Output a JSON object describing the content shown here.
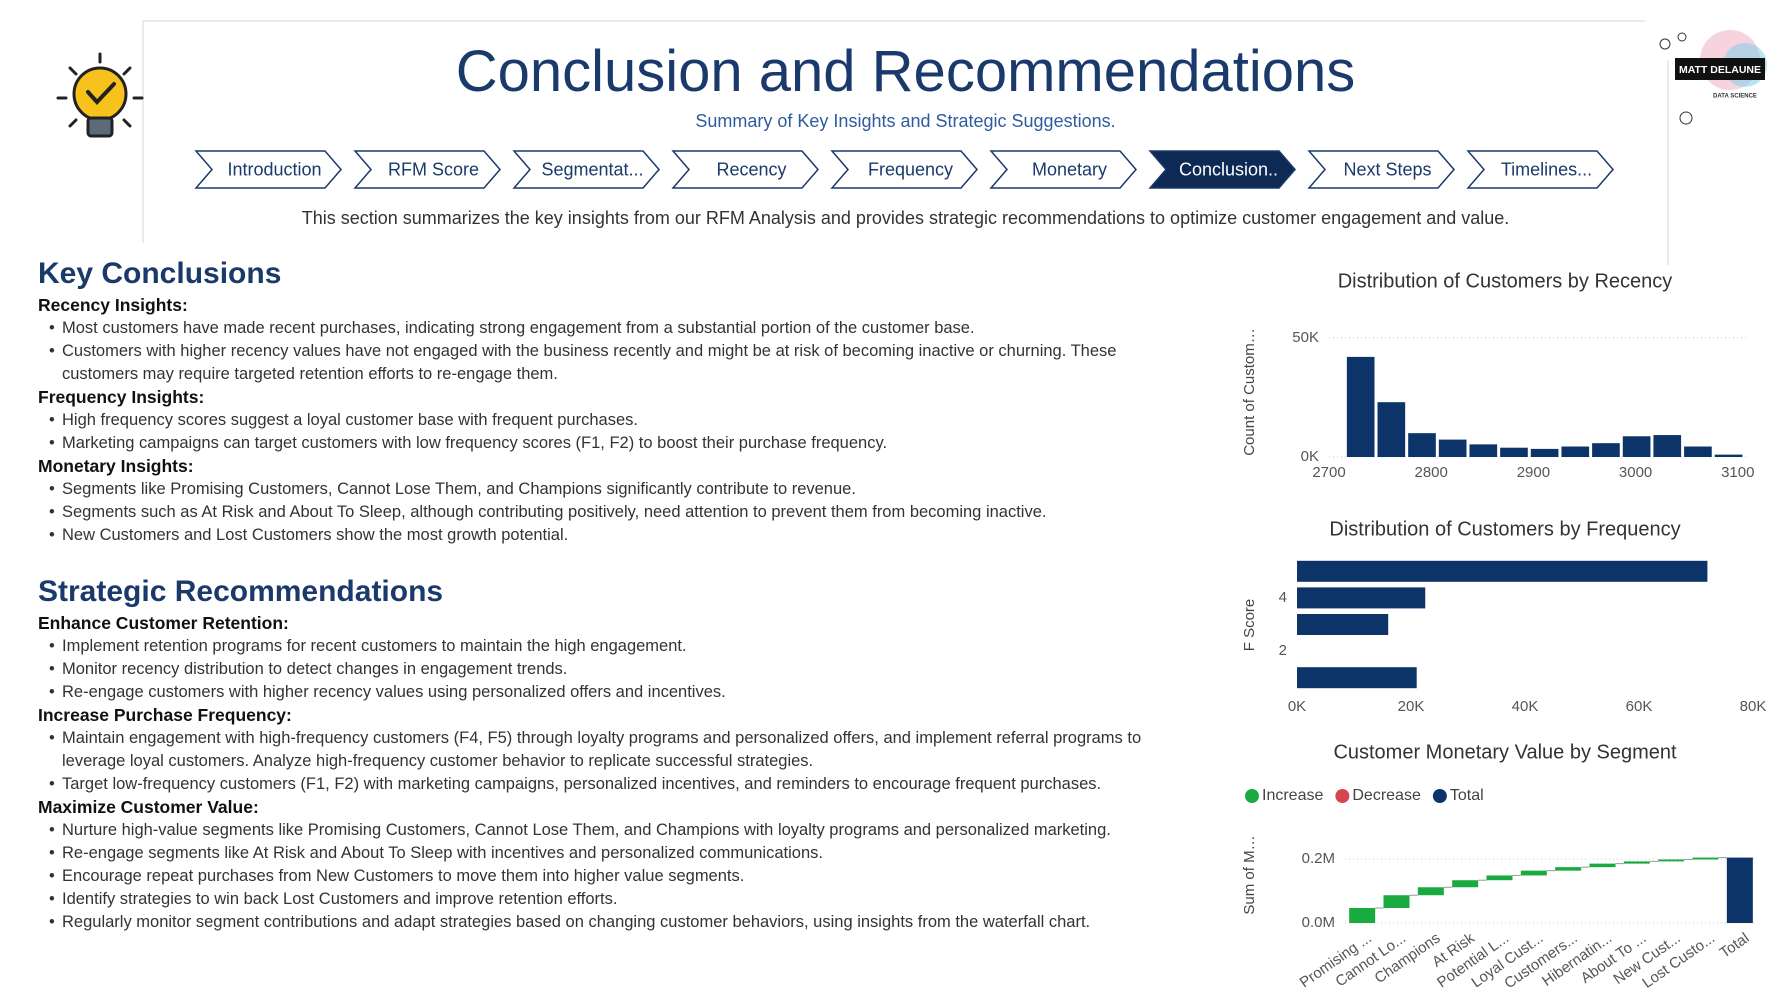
{
  "header": {
    "title": "Conclusion and Recommendations",
    "subtitle": "Summary of Key Insights and Strategic Suggestions.",
    "intro": "This section summarizes the key insights from our RFM Analysis and provides strategic recommendations to optimize customer engagement and value."
  },
  "logo": {
    "name": "MATT DELAUNE",
    "tagline": "DATA SCIENCE"
  },
  "nav": {
    "items": [
      "Introduction",
      "RFM Score",
      "Segmentat...",
      "Recency",
      "Frequency",
      "Monetary",
      "Conclusion..",
      "Next Steps",
      "Timelines..."
    ],
    "active": "Conclusion.."
  },
  "conclusions": {
    "title": "Key Conclusions",
    "groups": [
      {
        "heading": "Recency Insights:",
        "points": [
          "Most customers have made recent purchases, indicating strong engagement from a substantial portion of the customer base.",
          "Customers with higher recency values have not engaged with the business recently and might be at risk of becoming inactive or churning. These customers may require targeted retention efforts to re-engage them."
        ]
      },
      {
        "heading": "Frequency Insights:",
        "points": [
          "High frequency scores suggest a loyal customer base with frequent purchases.",
          "Marketing campaigns can target customers with low frequency scores (F1, F2) to boost their purchase frequency."
        ]
      },
      {
        "heading": "Monetary Insights:",
        "points": [
          "Segments like Promising Customers, Cannot Lose Them, and Champions significantly contribute to revenue.",
          "Segments such as At Risk and About To Sleep, although contributing positively, need attention to prevent them from becoming inactive.",
          "New Customers and Lost Customers show the most growth potential."
        ]
      }
    ]
  },
  "recommendations": {
    "title": "Strategic Recommendations",
    "groups": [
      {
        "heading": "Enhance Customer Retention:",
        "points": [
          "Implement retention programs for recent customers to maintain the high engagement.",
          "Monitor recency distribution to detect changes in engagement trends.",
          "Re-engage customers with higher recency values using personalized offers and incentives."
        ]
      },
      {
        "heading": "Increase Purchase Frequency:",
        "points": [
          "Maintain engagement with high-frequency customers (F4, F5) through loyalty programs and personalized offers, and implement referral programs to leverage loyal customers. Analyze high-frequency customer behavior to replicate successful strategies.",
          "Target low-frequency customers (F1, F2) with marketing campaigns, personalized incentives, and reminders to encourage frequent purchases."
        ]
      },
      {
        "heading": "Maximize Customer Value:",
        "points": [
          "Nurture high-value segments like Promising Customers, Cannot Lose Them, and Champions with loyalty programs and personalized marketing.",
          "Re-engage segments like At Risk and About To Sleep with incentives and personalized communications.",
          "Encourage repeat purchases from New Customers to move them into higher value segments.",
          "Identify strategies to win back Lost Customers and improve retention efforts.",
          "Regularly monitor segment contributions and adapt strategies based on changing customer behaviors, using insights from the waterfall chart."
        ]
      }
    ]
  },
  "chart_data": [
    {
      "type": "histogram",
      "title": "Distribution of Customers by Recency",
      "y_label": "Count of Custom…",
      "bins": [
        2716,
        2746,
        2776,
        2806,
        2836,
        2866,
        2896,
        2926,
        2956,
        2986,
        3016,
        3046,
        3076,
        3106
      ],
      "values": [
        42000,
        23000,
        10000,
        7300,
        5300,
        3900,
        3400,
        4400,
        5800,
        8700,
        9200,
        4400,
        1000
      ],
      "color": "#0c3468",
      "xlim": [
        2700,
        3110
      ],
      "xticks": [
        2700,
        2800,
        2900,
        3000,
        3100
      ],
      "ylim": [
        0,
        60000
      ],
      "yticks": [
        {
          "value": 0,
          "label": "0K"
        },
        {
          "value": 50000,
          "label": "50K"
        }
      ],
      "grid": true
    },
    {
      "type": "hbar",
      "title": "Distribution of Customers by Frequency",
      "y_label": "F Score",
      "y": [
        5,
        4,
        3,
        1
      ],
      "values": [
        72000,
        22500,
        16000,
        21000
      ],
      "color": "#0c3468",
      "ylim": [
        0.5,
        5.5
      ],
      "yticks": [
        2,
        4
      ],
      "xlim": [
        0,
        80000
      ],
      "xticks": [
        {
          "value": 0,
          "label": "0K"
        },
        {
          "value": 20000,
          "label": "20K"
        },
        {
          "value": 40000,
          "label": "40K"
        },
        {
          "value": 60000,
          "label": "60K"
        },
        {
          "value": 80000,
          "label": "80K"
        }
      ],
      "grid": false
    },
    {
      "type": "waterfall",
      "title": "Customer Monetary Value by Segment",
      "y_label": "Sum of M…",
      "legend": [
        {
          "name": "Increase",
          "color": "#1aab40"
        },
        {
          "name": "Decrease",
          "color": "#d64550"
        },
        {
          "name": "Total",
          "color": "#0c3468"
        }
      ],
      "categories": [
        "Promising ...",
        "Cannot Lo...",
        "Champions",
        "At Risk",
        "Potential L...",
        "Loyal Cust...",
        "Customers...",
        "Hibernatin...",
        "About To ...",
        "New Cust...",
        "Lost Custo...",
        "Total"
      ],
      "values": [
        47000,
        40000,
        25000,
        22000,
        15000,
        15000,
        11000,
        11000,
        7000,
        6000,
        6000,
        205000
      ],
      "ylim": [
        0,
        260000
      ],
      "yticks": [
        {
          "value": 0,
          "label": "0.0M"
        },
        {
          "value": 200000,
          "label": "0.2M"
        }
      ],
      "grid": true
    }
  ]
}
